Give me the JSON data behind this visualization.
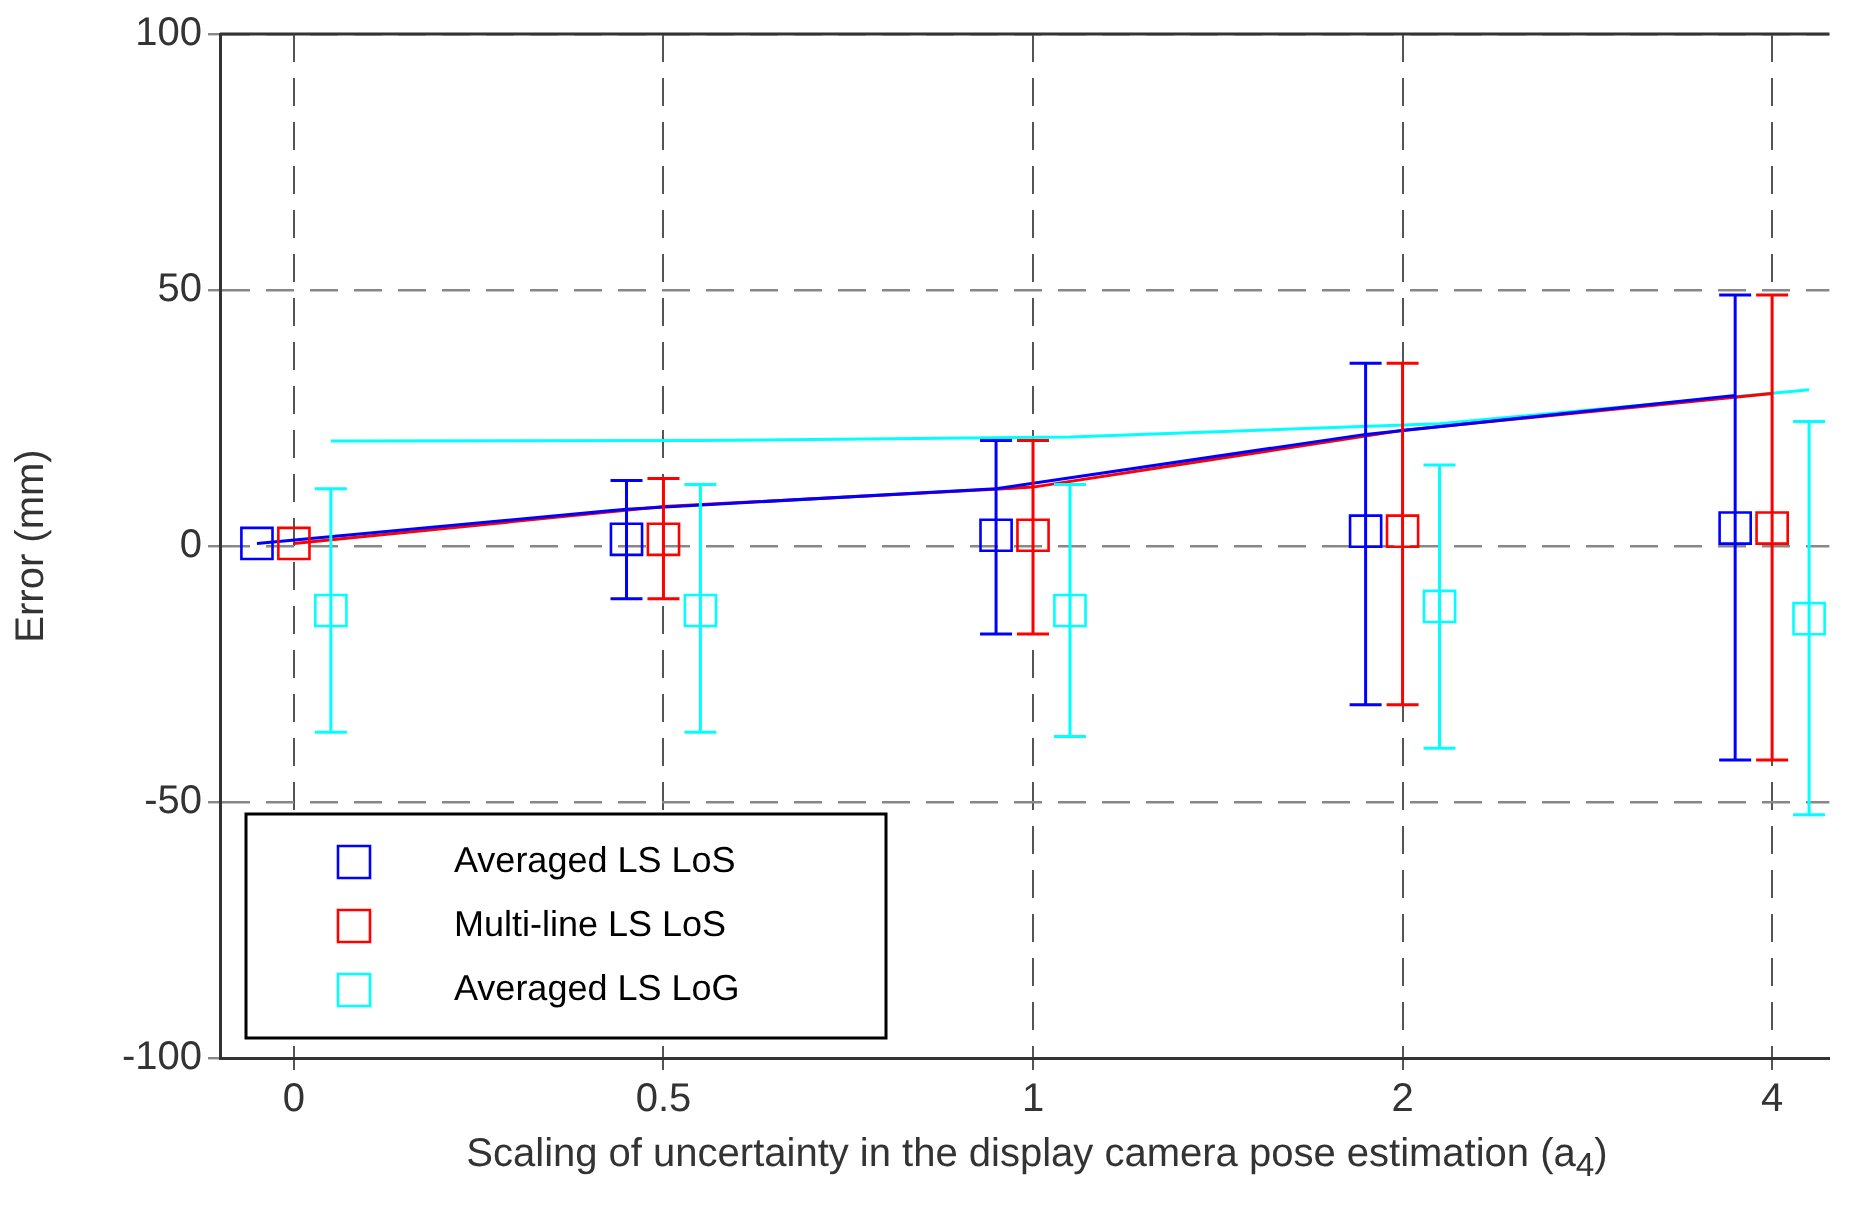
{
  "chart_data": {
    "type": "scatter",
    "xlabel": "Scaling of uncertainty in the display camera pose estimation (a$_{4}$)",
    "ylabel": "Error (mm)",
    "categories": [
      "0",
      "0.5",
      "1",
      "2",
      "4"
    ],
    "ylim": [
      -100,
      100
    ],
    "yticks": [
      -100,
      -50,
      0,
      50,
      100
    ],
    "grid": true,
    "legend": "bottom left",
    "marker": "square",
    "series": [
      {
        "name": "Averaged LS LoS",
        "color": "#0000ff",
        "values": [
          0.5,
          1.3,
          2.1,
          2.9,
          3.5
        ],
        "errors": [
          null,
          [
            -10.3,
            12.8
          ],
          [
            -17.2,
            20.6
          ],
          [
            -31,
            35.7
          ],
          [
            -41.8,
            49
          ]
        ]
      },
      {
        "name": "Multi-line LS LoS",
        "color": "#ff0000",
        "values": [
          0.5,
          1.3,
          2.1,
          2.9,
          3.5
        ],
        "errors": [
          null,
          [
            -10.3,
            13.2
          ],
          [
            -17.2,
            20.6
          ],
          [
            -31,
            35.7
          ],
          [
            -41.8,
            49
          ]
        ]
      },
      {
        "name": "Averaged LS LoG",
        "color": "#00ffff",
        "values": [
          -12.6,
          -12.6,
          -12.6,
          -11.8,
          -14.2
        ],
        "errors": [
          [
            -36.4,
            11.2
          ],
          [
            -36.4,
            12
          ],
          [
            -37.2,
            12
          ],
          [
            -39.5,
            15.8
          ],
          [
            -52.5,
            24.3
          ]
        ]
      },
      {
        "type": "line",
        "marker": "none",
        "color": "#0000ff",
        "values": [
          0.5,
          7.2,
          11.2,
          21.8,
          29.4
        ]
      },
      {
        "type": "line",
        "marker": "none",
        "color": "#ff0000",
        "values": [
          0.5,
          7.7,
          11.5,
          22.6,
          29.8
        ]
      },
      {
        "type": "line",
        "marker": "none",
        "color": "#00ffff",
        "values": [
          20.5,
          20.6,
          21.3,
          23.9,
          30.5
        ]
      }
    ]
  }
}
